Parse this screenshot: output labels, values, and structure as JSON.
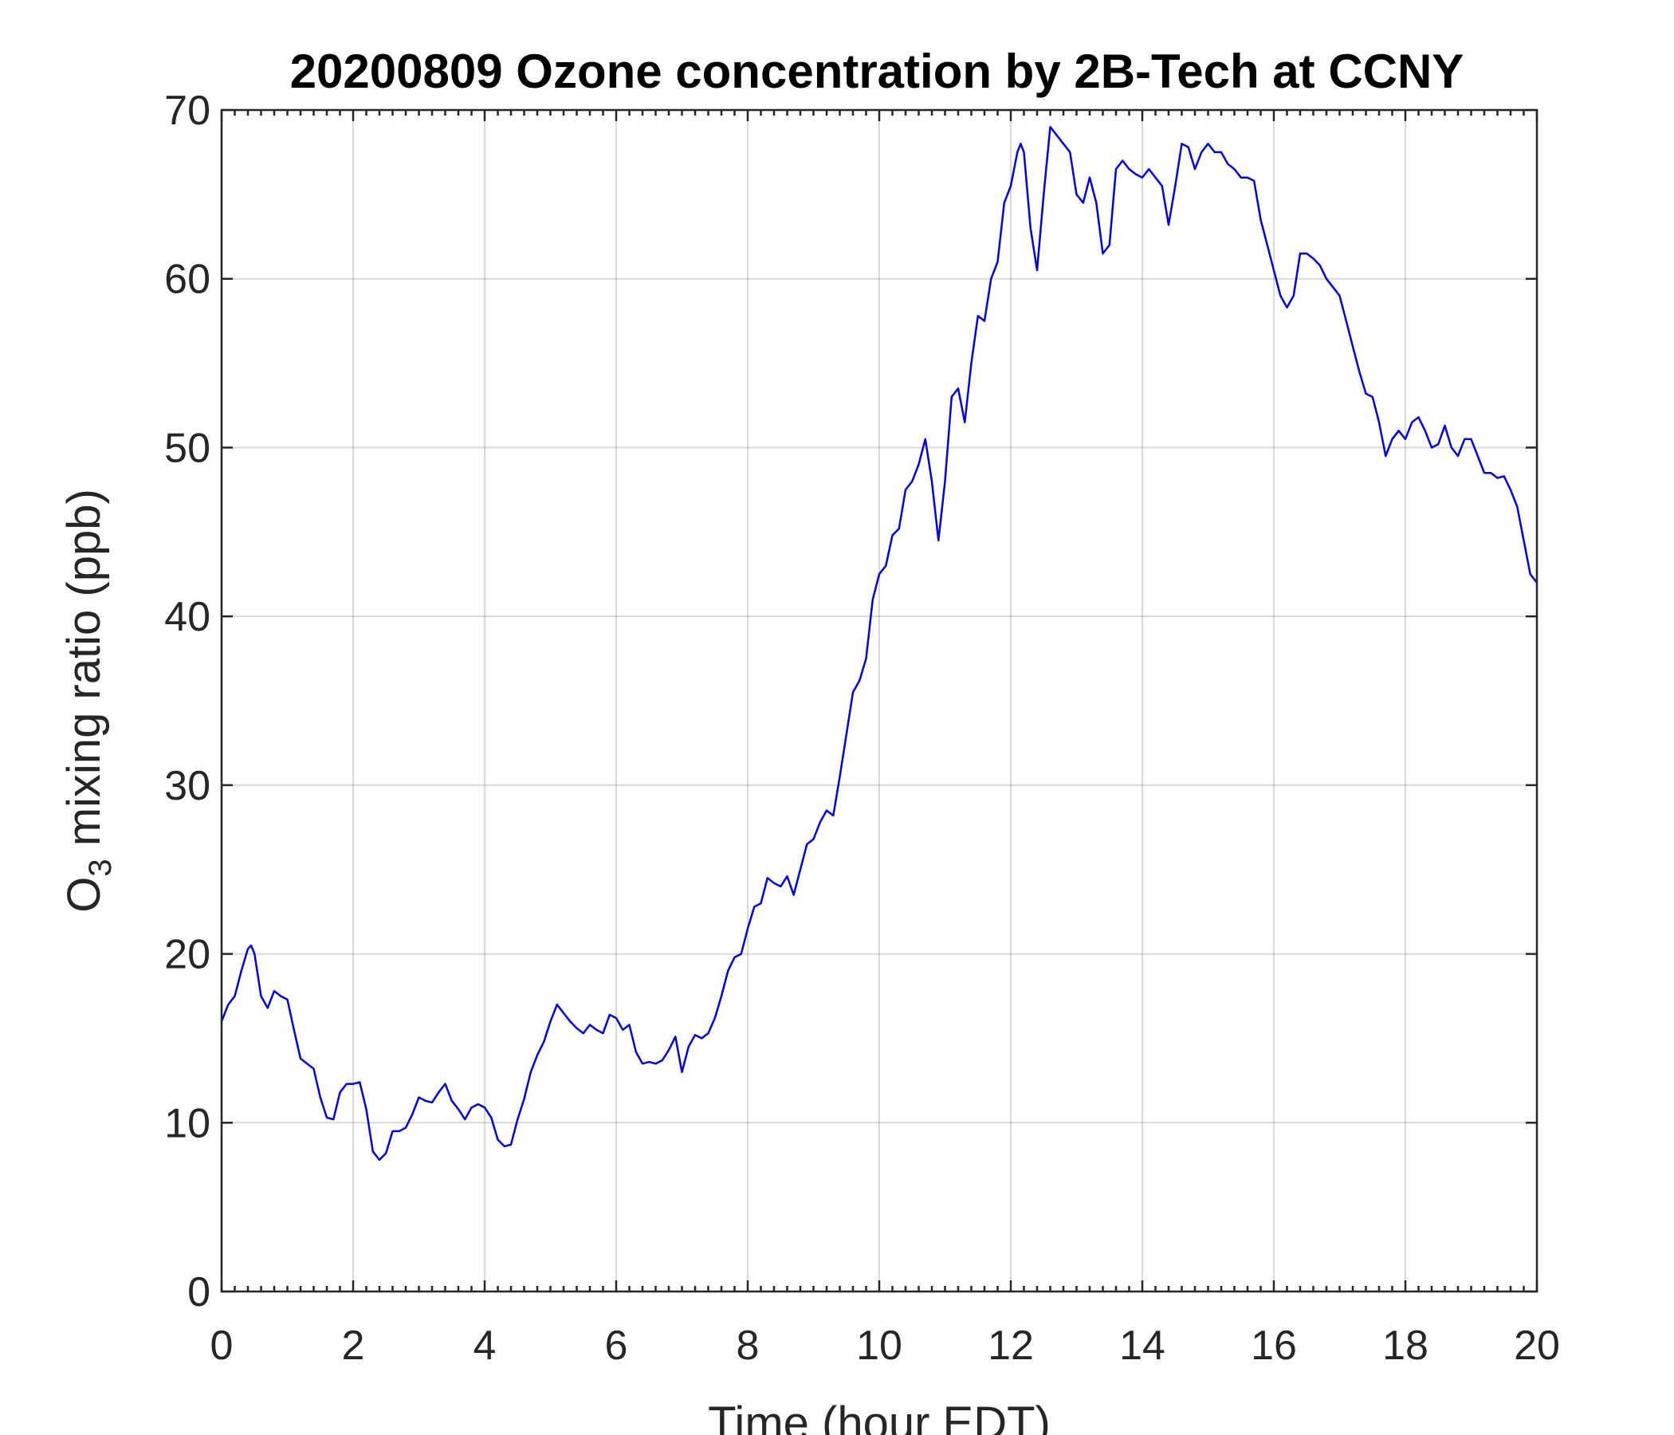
{
  "chart_data": {
    "type": "line",
    "title": "20200809 Ozone concentration by 2B-Tech at CCNY",
    "xlabel": "Time (hour EDT)",
    "ylabel_main": "O",
    "ylabel_sub": "3",
    "ylabel_rest": " mixing ratio (ppb)",
    "xlim": [
      0,
      20
    ],
    "ylim": [
      0,
      70
    ],
    "xticks": [
      0,
      2,
      4,
      6,
      8,
      10,
      12,
      14,
      16,
      18,
      20
    ],
    "yticks": [
      0,
      10,
      20,
      30,
      40,
      50,
      60,
      70
    ],
    "grid": true,
    "line_color": "#0000e6",
    "series": [
      {
        "x": [
          0.0,
          0.1,
          0.2,
          0.3,
          0.4,
          0.45,
          0.5,
          0.6,
          0.7,
          0.8,
          0.9,
          1.0,
          1.1,
          1.2,
          1.3,
          1.4,
          1.5,
          1.6,
          1.7,
          1.8,
          1.9,
          2.0,
          2.1,
          2.2,
          2.3,
          2.4,
          2.5,
          2.6,
          2.7,
          2.8,
          2.9,
          3.0,
          3.1,
          3.2,
          3.3,
          3.4,
          3.5,
          3.6,
          3.7,
          3.8,
          3.9,
          4.0,
          4.1,
          4.2,
          4.3,
          4.4,
          4.5,
          4.6,
          4.7,
          4.8,
          4.9,
          5.0,
          5.1,
          5.2,
          5.3,
          5.4,
          5.5,
          5.6,
          5.7,
          5.8,
          5.9,
          6.0,
          6.1,
          6.2,
          6.3,
          6.4,
          6.5,
          6.6,
          6.7,
          6.8,
          6.9,
          7.0,
          7.1,
          7.2,
          7.3,
          7.4,
          7.5,
          7.6,
          7.7,
          7.8,
          7.9,
          8.0,
          8.1,
          8.2,
          8.3,
          8.4,
          8.5,
          8.6,
          8.7,
          8.8,
          8.9,
          9.0,
          9.1,
          9.2,
          9.3,
          9.4,
          9.5,
          9.6,
          9.7,
          9.8,
          9.9,
          10.0,
          10.1,
          10.2,
          10.3,
          10.4,
          10.5,
          10.6,
          10.7,
          10.8,
          10.9,
          11.0,
          11.1,
          11.2,
          11.3,
          11.4,
          11.5,
          11.6,
          11.7,
          11.8,
          11.9,
          12.0,
          12.1,
          12.15,
          12.2,
          12.3,
          12.4,
          12.5,
          12.6,
          12.7,
          12.8,
          12.9,
          13.0,
          13.1,
          13.2,
          13.3,
          13.4,
          13.5,
          13.6,
          13.7,
          13.8,
          13.9,
          14.0,
          14.1,
          14.2,
          14.3,
          14.4,
          14.5,
          14.6,
          14.7,
          14.8,
          14.9,
          15.0,
          15.1,
          15.2,
          15.3,
          15.4,
          15.5,
          15.6,
          15.7,
          15.8,
          15.9,
          16.0,
          16.1,
          16.2,
          16.3,
          16.4,
          16.5,
          16.6,
          16.7,
          16.8,
          16.9,
          17.0,
          17.1,
          17.2,
          17.3,
          17.4,
          17.5,
          17.6,
          17.7,
          17.8,
          17.9,
          18.0,
          18.1,
          18.2,
          18.3,
          18.4,
          18.5,
          18.6,
          18.7,
          18.8,
          18.9,
          19.0,
          19.1,
          19.2,
          19.3,
          19.4,
          19.5,
          19.6,
          19.7,
          19.8,
          19.9,
          20.0
        ],
        "y": [
          16.0,
          17.0,
          17.5,
          19.0,
          20.3,
          20.5,
          20.0,
          17.5,
          16.8,
          17.8,
          17.5,
          17.3,
          15.5,
          13.8,
          13.5,
          13.2,
          11.5,
          10.3,
          10.2,
          11.8,
          12.3,
          12.3,
          12.4,
          10.8,
          8.3,
          7.8,
          8.2,
          9.5,
          9.5,
          9.7,
          10.5,
          11.5,
          11.3,
          11.2,
          11.8,
          12.3,
          11.3,
          10.8,
          10.2,
          10.9,
          11.1,
          10.9,
          10.3,
          9.0,
          8.6,
          8.7,
          10.2,
          11.4,
          13.0,
          14.0,
          14.8,
          16.0,
          17.0,
          16.5,
          16.0,
          15.6,
          15.3,
          15.8,
          15.5,
          15.3,
          16.4,
          16.2,
          15.5,
          15.8,
          14.2,
          13.5,
          13.6,
          13.5,
          13.7,
          14.3,
          15.1,
          13.0,
          14.5,
          15.2,
          15.0,
          15.3,
          16.2,
          17.5,
          19.0,
          19.8,
          20.0,
          21.5,
          22.8,
          23.0,
          24.5,
          24.2,
          24.0,
          24.6,
          23.5,
          25.0,
          26.5,
          26.8,
          27.8,
          28.5,
          28.2,
          30.5,
          33.0,
          35.5,
          36.2,
          37.5,
          41.0,
          42.5,
          43.0,
          44.8,
          45.2,
          47.5,
          48.0,
          49.0,
          50.5,
          48.0,
          44.5,
          48.0,
          53.0,
          53.5,
          51.5,
          55.0,
          57.8,
          57.5,
          60.0,
          61.0,
          64.5,
          65.5,
          67.5,
          68.0,
          67.5,
          63.0,
          60.5,
          65.0,
          69.0,
          68.5,
          68.0,
          67.5,
          65.0,
          64.5,
          66.0,
          64.5,
          61.5,
          62.0,
          66.5,
          67.0,
          66.5,
          66.2,
          66.0,
          66.5,
          66.0,
          65.5,
          63.2,
          65.5,
          68.0,
          67.8,
          66.5,
          67.5,
          68.0,
          67.5,
          67.5,
          66.8,
          66.5,
          66.0,
          66.0,
          65.8,
          63.5,
          62.0,
          60.5,
          59.0,
          58.3,
          59.0,
          61.5,
          61.5,
          61.2,
          60.8,
          60.0,
          59.5,
          59.0,
          57.5,
          56.0,
          54.5,
          53.2,
          53.0,
          51.5,
          49.5,
          50.5,
          51.0,
          50.5,
          51.5,
          51.8,
          51.0,
          50.0,
          50.2,
          51.3,
          50.0,
          49.5,
          50.5,
          50.5,
          49.5,
          48.5,
          48.5,
          48.2,
          48.3,
          47.5,
          46.5,
          44.5,
          42.5,
          42.0
        ]
      }
    ]
  }
}
